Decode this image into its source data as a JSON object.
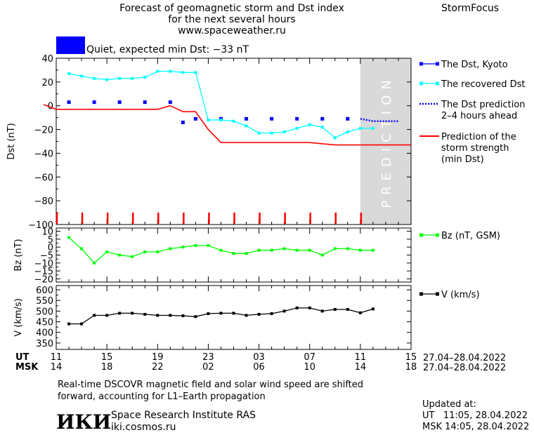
{
  "header": {
    "title_lines": [
      "Forecast of geomagnetic storm and Dst index",
      "for the next several hours",
      "www.spaceweather.ru"
    ],
    "brand": "StormFocus"
  },
  "status": {
    "label": "Quiet, expected min Dst: −33 nT",
    "color": "#0000ff"
  },
  "prediction_label": "PREDICTION",
  "legend": {
    "dst_kyoto": "The Dst, Kyoto",
    "recovered": "The recovered Dst",
    "prediction": [
      "The Dst prediction",
      "2–4 hours ahead"
    ],
    "storm_strength": [
      "Prediction of the",
      "storm strength",
      "(min Dst)"
    ],
    "bz": "Bz (nT, GSM)",
    "v": "V (km/s)"
  },
  "time_axis": {
    "ut_label": "UT",
    "msk_label": "MSK",
    "ut_ticks": [
      "11",
      "15",
      "19",
      "23",
      "03",
      "07",
      "11",
      "15"
    ],
    "msk_ticks": [
      "14",
      "18",
      "22",
      "02",
      "06",
      "10",
      "14",
      "18"
    ],
    "ut_range": "27.04–28.04.2022",
    "msk_range": "27.04–28.04.2022"
  },
  "footer": {
    "note": [
      "Real-time DSCOVR magnetic field and solar wind speed are shifted",
      "forward, accounting for L1–Earth propagation"
    ],
    "logo_text": "ИКИ",
    "institute": "Space Research Institute RAS",
    "site": "iki.cosmos.ru",
    "updated_label": "Updated at:",
    "updated_ut": "UT   11:05, 28.04.2022",
    "updated_msk": "MSK 14:05, 28.04.2022"
  },
  "chart_data": [
    {
      "type": "line",
      "title": "Dst",
      "ylabel": "Dst (nT)",
      "xlabel": "UT",
      "x_unit": "hours from 11 UT 27.04.2022",
      "ylim": [
        -100,
        40
      ],
      "yticks": [
        40,
        20,
        0,
        -20,
        -40,
        -60,
        -80,
        -100
      ],
      "xlim": [
        0,
        28
      ],
      "series": [
        {
          "name": "The Dst, Kyoto",
          "color": "#0000ff",
          "style": "squares",
          "x": [
            1,
            3,
            5,
            7,
            9,
            10,
            11,
            13,
            15,
            17,
            19,
            21,
            23
          ],
          "y": [
            3,
            3,
            3,
            3,
            3,
            -14,
            -11,
            -11,
            -11,
            -11,
            -11,
            -11,
            -11
          ]
        },
        {
          "name": "The recovered Dst",
          "color": "#00ffff",
          "style": "line-squares",
          "x": [
            1,
            2,
            3,
            4,
            5,
            6,
            7,
            8,
            9,
            10,
            11,
            12,
            13,
            14,
            15,
            16,
            17,
            18,
            19,
            20,
            21,
            22,
            23,
            24,
            25
          ],
          "y": [
            27,
            25,
            23,
            22,
            23,
            23,
            24,
            29,
            29,
            28,
            28,
            -12,
            -12,
            -13,
            -17,
            -23,
            -23,
            -22,
            -19,
            -16,
            -18,
            -27,
            -22,
            -19,
            -19
          ]
        },
        {
          "name": "The Dst prediction 2–4 hours ahead",
          "color": "#0000ff",
          "style": "dotted",
          "x": [
            24,
            24.5,
            25,
            25.5,
            26,
            26.5,
            27
          ],
          "y": [
            -11,
            -12,
            -13,
            -13,
            -13,
            -13,
            -13
          ]
        },
        {
          "name": "Prediction of the storm strength (min Dst)",
          "color": "#ff0000",
          "style": "line",
          "x": [
            -1,
            0,
            2,
            4,
            6,
            8,
            9,
            10,
            11,
            12,
            13,
            14,
            16,
            18,
            20,
            22,
            24,
            26,
            28
          ],
          "y": [
            1,
            -3,
            -3,
            -3,
            -3,
            -3,
            0,
            -5,
            -5,
            -20,
            -31,
            -31,
            -31,
            -31,
            -31,
            -33,
            -33,
            -33,
            -33
          ]
        }
      ],
      "storm_markers_x": [
        0,
        2,
        4,
        6,
        8,
        10,
        12,
        14,
        16,
        18,
        20,
        22,
        24
      ],
      "prediction_zone_x": [
        24,
        28
      ]
    },
    {
      "type": "line",
      "ylabel": "Bz (nT)",
      "ylim": [
        -22,
        12
      ],
      "yticks": [
        10,
        5,
        0,
        -5,
        -10,
        -15,
        -20
      ],
      "xlim": [
        0,
        28
      ],
      "series": [
        {
          "name": "Bz (nT, GSM)",
          "color": "#00ff00",
          "x": [
            1,
            2,
            3,
            4,
            5,
            6,
            7,
            8,
            9,
            10,
            11,
            12,
            13,
            14,
            15,
            16,
            17,
            18,
            19,
            20,
            21,
            22,
            23,
            24,
            25
          ],
          "y": [
            6,
            -1,
            -10,
            -3,
            -5,
            -6,
            -3,
            -3,
            -1,
            0,
            1,
            1,
            -2,
            -4,
            -4,
            -2,
            -2,
            -1,
            -2,
            -2,
            -5,
            -1,
            -1,
            -2,
            -2
          ]
        }
      ]
    },
    {
      "type": "line",
      "ylabel": "V (km/s)",
      "ylim": [
        320,
        620
      ],
      "yticks": [
        600,
        550,
        500,
        450,
        400,
        350
      ],
      "xlim": [
        0,
        28
      ],
      "series": [
        {
          "name": "V (km/s)",
          "color": "#000000",
          "x": [
            1,
            2,
            3,
            4,
            5,
            6,
            7,
            8,
            9,
            10,
            11,
            12,
            13,
            14,
            15,
            16,
            17,
            18,
            19,
            20,
            21,
            22,
            23,
            24,
            25
          ],
          "y": [
            440,
            440,
            480,
            480,
            490,
            490,
            485,
            480,
            480,
            478,
            474,
            488,
            490,
            490,
            480,
            485,
            488,
            500,
            515,
            515,
            500,
            508,
            508,
            492,
            510
          ]
        }
      ]
    }
  ]
}
